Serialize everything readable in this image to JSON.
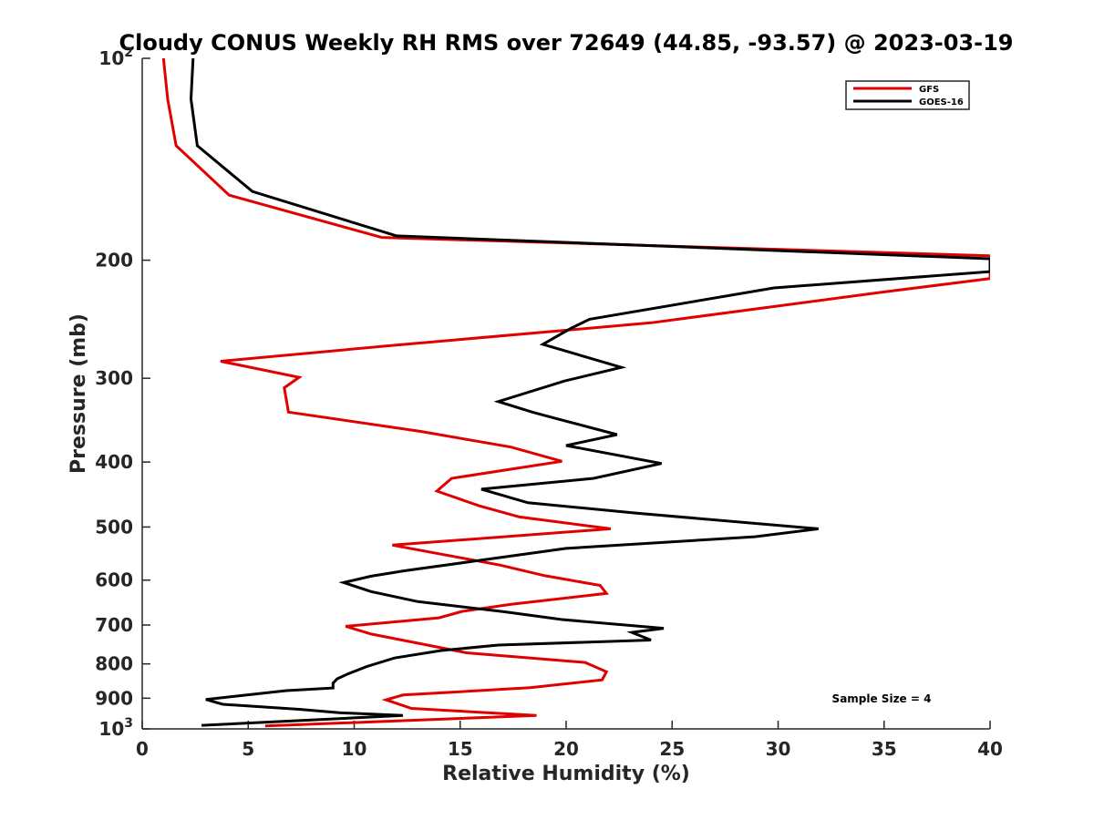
{
  "chart_data": {
    "type": "line",
    "title": "Cloudy CONUS Weekly RH RMS over 72649 (44.85, -93.57) @ 2023-03-19",
    "xlabel": "Relative Humidity (%)",
    "ylabel": "Pressure (mb)",
    "xlim": [
      0,
      40
    ],
    "ylim": [
      100,
      1000
    ],
    "y_scale": "log",
    "y_reversed": true,
    "grid": false,
    "legend_position": "top-right",
    "x_ticks": [
      0,
      5,
      10,
      15,
      20,
      25,
      30,
      35,
      40
    ],
    "y_ticks": [
      {
        "value": 100,
        "base": "10",
        "exp": "2"
      },
      {
        "value": 200,
        "label": "200"
      },
      {
        "value": 300,
        "label": "300"
      },
      {
        "value": 400,
        "label": "400"
      },
      {
        "value": 500,
        "label": "500"
      },
      {
        "value": 600,
        "label": "600"
      },
      {
        "value": 700,
        "label": "700"
      },
      {
        "value": 800,
        "label": "800"
      },
      {
        "value": 900,
        "label": "900"
      },
      {
        "value": 1000,
        "base": "10",
        "exp": "3"
      }
    ],
    "annotation": "Sample Size = 4",
    "series": [
      {
        "name": "GFS",
        "color": "#e00000",
        "points": [
          [
            1.0,
            100
          ],
          [
            1.2,
            115
          ],
          [
            1.6,
            135
          ],
          [
            4.1,
            160
          ],
          [
            11.3,
            185
          ],
          [
            40,
            197
          ],
          [
            40,
            213
          ],
          [
            35,
            223
          ],
          [
            24,
            248
          ],
          [
            11.8,
            268
          ],
          [
            3.7,
            283
          ],
          [
            7.4,
            299
          ],
          [
            6.7,
            310
          ],
          [
            6.9,
            337
          ],
          [
            13.1,
            360
          ],
          [
            17.4,
            380
          ],
          [
            19.8,
            399
          ],
          [
            14.6,
            423
          ],
          [
            13.9,
            442
          ],
          [
            15.9,
            465
          ],
          [
            17.8,
            483
          ],
          [
            22.1,
            503
          ],
          [
            11.8,
            532
          ],
          [
            16.9,
            570
          ],
          [
            19.0,
            591
          ],
          [
            21.6,
            611
          ],
          [
            21.9,
            628
          ],
          [
            17.4,
            652
          ],
          [
            15.1,
            668
          ],
          [
            14.0,
            683
          ],
          [
            9.6,
            703
          ],
          [
            10.8,
            722
          ],
          [
            12.8,
            743
          ],
          [
            15.3,
            770
          ],
          [
            20.9,
            796
          ],
          [
            21.9,
            822
          ],
          [
            21.7,
            845
          ],
          [
            18.3,
            868
          ],
          [
            12.3,
            890
          ],
          [
            11.5,
            905
          ],
          [
            12.7,
            932
          ],
          [
            18.6,
            955
          ],
          [
            5.8,
            990
          ]
        ]
      },
      {
        "name": "GOES-16",
        "color": "#000000",
        "points": [
          [
            2.4,
            100
          ],
          [
            2.3,
            115
          ],
          [
            2.6,
            135
          ],
          [
            5.2,
            158
          ],
          [
            12.0,
            184
          ],
          [
            40,
            199
          ],
          [
            40,
            208
          ],
          [
            29.8,
            220
          ],
          [
            21.1,
            245
          ],
          [
            20.2,
            253
          ],
          [
            18.9,
            267
          ],
          [
            22.6,
            289
          ],
          [
            19.9,
            303
          ],
          [
            16.8,
            325
          ],
          [
            18.4,
            337
          ],
          [
            19.6,
            345
          ],
          [
            22.4,
            364
          ],
          [
            20.0,
            378
          ],
          [
            24.5,
            402
          ],
          [
            21.3,
            423
          ],
          [
            16.0,
            439
          ],
          [
            18.2,
            460
          ],
          [
            23.4,
            477
          ],
          [
            31.9,
            503
          ],
          [
            28.9,
            517
          ],
          [
            20.0,
            538
          ],
          [
            15.5,
            563
          ],
          [
            12.4,
            581
          ],
          [
            10.8,
            592
          ],
          [
            9.5,
            605
          ],
          [
            10.8,
            624
          ],
          [
            13.0,
            646
          ],
          [
            17.1,
            669
          ],
          [
            19.8,
            687
          ],
          [
            24.6,
            708
          ],
          [
            23.1,
            718
          ],
          [
            24.0,
            737
          ],
          [
            16.8,
            750
          ],
          [
            14.1,
            764
          ],
          [
            11.9,
            784
          ],
          [
            10.6,
            807
          ],
          [
            9.7,
            828
          ],
          [
            9.2,
            842
          ],
          [
            9.0,
            855
          ],
          [
            9.0,
            869
          ],
          [
            6.8,
            877
          ],
          [
            3.0,
            904
          ],
          [
            3.8,
            919
          ],
          [
            7.4,
            935
          ],
          [
            9.3,
            946
          ],
          [
            12.3,
            955
          ],
          [
            2.8,
            988
          ]
        ]
      }
    ]
  }
}
